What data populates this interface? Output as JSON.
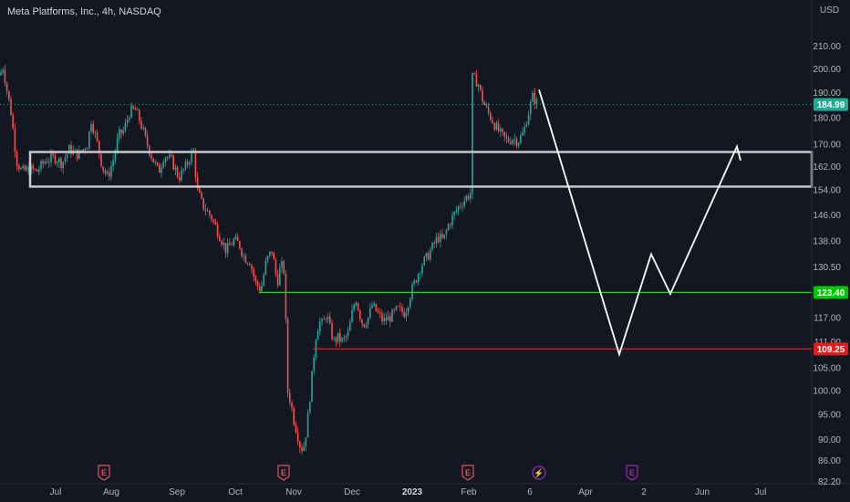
{
  "header": {
    "title": "Meta Platforms, Inc., 4h, NASDAQ",
    "currency": "USD"
  },
  "colors": {
    "background": "#131722",
    "up": "#26a69a",
    "down": "#ef5350",
    "green_line": "#00e600",
    "red_line": "#ff1a1a",
    "zone": "#c8c8c8",
    "projection": "#ffffff",
    "price_tag": "#22ab94",
    "earnings": "#e0525f",
    "dividend": "#9c27b0"
  },
  "chart_data": {
    "type": "candlestick",
    "y_axis": {
      "ticks": [
        "210.00",
        "200.00",
        "190.00",
        "180.00",
        "170.00",
        "162.00",
        "154.00",
        "146.00",
        "138.00",
        "130.50",
        "123.40",
        "117.00",
        "111.00",
        "105.00",
        "100.00",
        "95.00",
        "90.00",
        "86.00",
        "82.20"
      ],
      "scale": "log"
    },
    "x_axis": {
      "ticks": [
        "Jul",
        "Aug",
        "Sep",
        "Oct",
        "Nov",
        "Dec",
        "2023",
        "Feb",
        "6",
        "Apr",
        "2",
        "Jun",
        "Jul"
      ]
    },
    "price_path": [
      [
        0,
        197
      ],
      [
        3,
        201
      ],
      [
        8,
        190
      ],
      [
        12,
        182
      ],
      [
        18,
        164
      ],
      [
        24,
        160
      ],
      [
        33,
        161
      ],
      [
        40,
        160
      ],
      [
        50,
        164
      ],
      [
        60,
        165
      ],
      [
        68,
        163
      ],
      [
        76,
        168
      ],
      [
        86,
        166
      ],
      [
        96,
        170
      ],
      [
        100,
        179
      ],
      [
        106,
        171
      ],
      [
        112,
        162
      ],
      [
        118,
        158
      ],
      [
        124,
        164
      ],
      [
        130,
        173
      ],
      [
        136,
        175
      ],
      [
        142,
        182
      ],
      [
        148,
        183
      ],
      [
        154,
        178
      ],
      [
        160,
        171
      ],
      [
        168,
        164
      ],
      [
        174,
        160
      ],
      [
        180,
        166
      ],
      [
        188,
        164
      ],
      [
        196,
        158
      ],
      [
        204,
        162
      ],
      [
        212,
        168
      ],
      [
        216,
        154
      ],
      [
        222,
        149
      ],
      [
        232,
        145
      ],
      [
        240,
        140
      ],
      [
        248,
        135
      ],
      [
        256,
        138
      ],
      [
        262,
        137
      ],
      [
        268,
        133
      ],
      [
        274,
        132
      ],
      [
        280,
        126
      ],
      [
        286,
        124
      ],
      [
        292,
        132
      ],
      [
        298,
        135
      ],
      [
        304,
        126
      ],
      [
        308,
        131
      ],
      [
        312,
        129
      ],
      [
        315,
        100
      ],
      [
        318,
        98
      ],
      [
        322,
        94
      ],
      [
        326,
        91
      ],
      [
        330,
        88
      ],
      [
        334,
        89
      ],
      [
        338,
        95
      ],
      [
        342,
        103
      ],
      [
        346,
        112
      ],
      [
        350,
        116
      ],
      [
        354,
        115
      ],
      [
        358,
        118
      ],
      [
        362,
        114
      ],
      [
        366,
        111
      ],
      [
        370,
        112
      ],
      [
        376,
        111
      ],
      [
        382,
        113
      ],
      [
        386,
        118
      ],
      [
        390,
        122
      ],
      [
        394,
        118
      ],
      [
        398,
        115
      ],
      [
        404,
        117
      ],
      [
        408,
        120
      ],
      [
        414,
        118
      ],
      [
        420,
        116
      ],
      [
        428,
        117
      ],
      [
        436,
        119
      ],
      [
        444,
        118
      ],
      [
        450,
        123
      ],
      [
        456,
        127
      ],
      [
        462,
        131
      ],
      [
        468,
        133
      ],
      [
        474,
        136
      ],
      [
        480,
        139
      ],
      [
        486,
        138
      ],
      [
        492,
        143
      ],
      [
        498,
        146
      ],
      [
        504,
        149
      ],
      [
        510,
        151
      ],
      [
        516,
        153
      ],
      [
        518,
        196
      ],
      [
        524,
        194
      ],
      [
        528,
        188
      ],
      [
        532,
        184
      ],
      [
        538,
        180
      ],
      [
        544,
        176
      ],
      [
        550,
        173
      ],
      [
        556,
        171
      ],
      [
        562,
        172
      ],
      [
        568,
        171
      ],
      [
        574,
        174
      ],
      [
        578,
        180
      ],
      [
        584,
        188
      ],
      [
        590,
        185
      ]
    ],
    "levels": [
      {
        "price": 123.4,
        "label": "123.40",
        "color": "#00e600"
      },
      {
        "price": 109.25,
        "label": "109.25",
        "color": "#ff1a1a"
      }
    ],
    "current_price": {
      "price": 184.99,
      "label": "184.99"
    },
    "zone": {
      "top": 167,
      "bottom": 155
    },
    "projection": [
      {
        "x": 591,
        "price": 191
      },
      {
        "x": 679,
        "price": 108
      },
      {
        "x": 714,
        "price": 134
      },
      {
        "x": 735,
        "price": 123
      },
      {
        "x": 808,
        "price": 169
      },
      {
        "x": 812,
        "price": 164
      }
    ],
    "events": [
      {
        "x": 114,
        "type": "E"
      },
      {
        "x": 311,
        "type": "E"
      },
      {
        "x": 513,
        "type": "E"
      },
      {
        "x": 591,
        "type": "⚡"
      },
      {
        "x": 693,
        "type": "E"
      }
    ]
  }
}
